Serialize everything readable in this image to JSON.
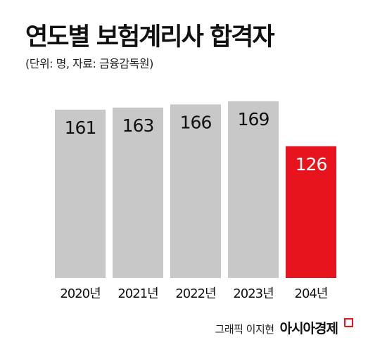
{
  "title": "연도별 보험계리사 합격자",
  "subtitle": "(단위: 명, 자료: 금융감독원)",
  "credit": "그래픽 이지현",
  "publisher": "아시아경제",
  "colors": {
    "bar": "#c8c8c8",
    "highlight": "#e8141d",
    "value_text": "#111111",
    "highlight_text": "#ffffff"
  },
  "chart_data": {
    "type": "bar",
    "title": "연도별 보험계리사 합격자",
    "subtitle": "(단위: 명, 자료: 금융감독원)",
    "categories": [
      "2020년",
      "2021년",
      "2022년",
      "2023년",
      "204년"
    ],
    "values": [
      161,
      163,
      166,
      169,
      126
    ],
    "highlight_index": 4,
    "xlabel": "",
    "ylabel": "",
    "ylim": [
      0,
      175
    ],
    "grid": false,
    "legend": "none"
  }
}
